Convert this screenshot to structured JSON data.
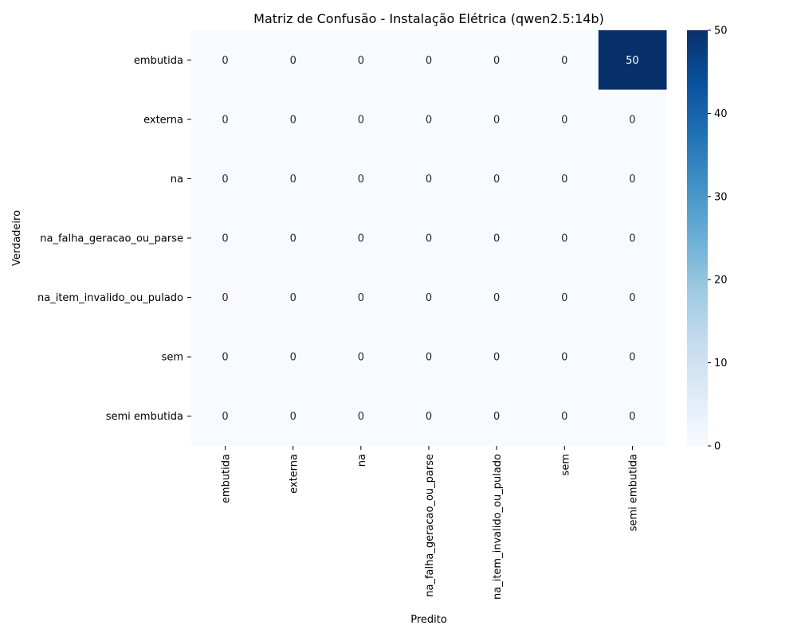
{
  "chart_data": {
    "type": "heatmap",
    "title": "Matriz de Confusão - Instalação Elétrica (qwen2.5:14b)",
    "xlabel": "Predito",
    "ylabel": "Verdadeiro",
    "row_labels": [
      "embutida",
      "externa",
      "na",
      "na_falha_geracao_ou_parse",
      "na_item_invalido_ou_pulado",
      "sem",
      "semi embutida"
    ],
    "col_labels": [
      "embutida",
      "externa",
      "na",
      "na_falha_geracao_ou_parse",
      "na_item_invalido_ou_pulado",
      "sem",
      "semi embutida"
    ],
    "values": [
      [
        0,
        0,
        0,
        0,
        0,
        0,
        50
      ],
      [
        0,
        0,
        0,
        0,
        0,
        0,
        0
      ],
      [
        0,
        0,
        0,
        0,
        0,
        0,
        0
      ],
      [
        0,
        0,
        0,
        0,
        0,
        0,
        0
      ],
      [
        0,
        0,
        0,
        0,
        0,
        0,
        0
      ],
      [
        0,
        0,
        0,
        0,
        0,
        0,
        0
      ],
      [
        0,
        0,
        0,
        0,
        0,
        0,
        0
      ]
    ],
    "colorbar": {
      "range": [
        0,
        50
      ],
      "ticks": [
        0,
        10,
        20,
        30,
        40,
        50
      ],
      "colormap": "Blues",
      "low_color": "#f7fbff",
      "high_color": "#08306b"
    },
    "annotated": true,
    "grid": false
  }
}
